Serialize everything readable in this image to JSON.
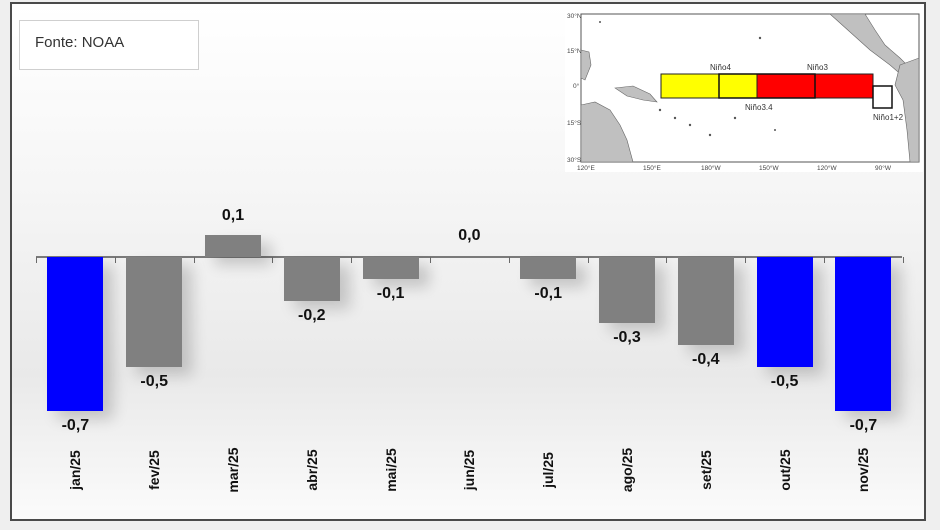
{
  "source_box": {
    "label": "Fonte: NOAA"
  },
  "map": {
    "lat_labels": [
      "30°N",
      "15°N",
      "0°",
      "15°S",
      "30°S"
    ],
    "lon_labels": [
      "120°E",
      "150°E",
      "180°W",
      "150°W",
      "120°W",
      "90°W"
    ],
    "regions": [
      {
        "name": "Niño4",
        "color": "#ffff00"
      },
      {
        "name": "Niño3.4",
        "color": "#ffff00/#ff0000"
      },
      {
        "name": "Niño3",
        "color": "#ff0000"
      },
      {
        "name": "Niño1+2",
        "color": "#ffffff"
      }
    ]
  },
  "colors": {
    "highlight": "#0000ff",
    "neutral": "#808080",
    "axis": "#7a7a7a"
  },
  "chart_data": {
    "type": "bar",
    "title": "",
    "xlabel": "",
    "ylabel": "",
    "categories": [
      "jan/25",
      "fev/25",
      "mar/25",
      "abr/25",
      "mai/25",
      "jun/25",
      "jul/25",
      "ago/25",
      "set/25",
      "out/25",
      "nov/25"
    ],
    "values": [
      -0.7,
      -0.5,
      0.1,
      -0.2,
      -0.1,
      0.0,
      -0.1,
      -0.3,
      -0.4,
      -0.5,
      -0.7
    ],
    "value_labels": [
      "-0,7",
      "-0,5",
      "0,1",
      "-0,2",
      "-0,1",
      "0,0",
      "-0,1",
      "-0,3",
      "-0,4",
      "-0,5",
      "-0,7"
    ],
    "bar_colors": [
      "#0000ff",
      "#808080",
      "#808080",
      "#808080",
      "#808080",
      "#808080",
      "#808080",
      "#808080",
      "#808080",
      "#0000ff",
      "#0000ff"
    ],
    "ylim": [
      -0.8,
      0.2
    ],
    "grid": false,
    "legend": "none",
    "annotations": [
      "Fonte: NOAA"
    ]
  }
}
